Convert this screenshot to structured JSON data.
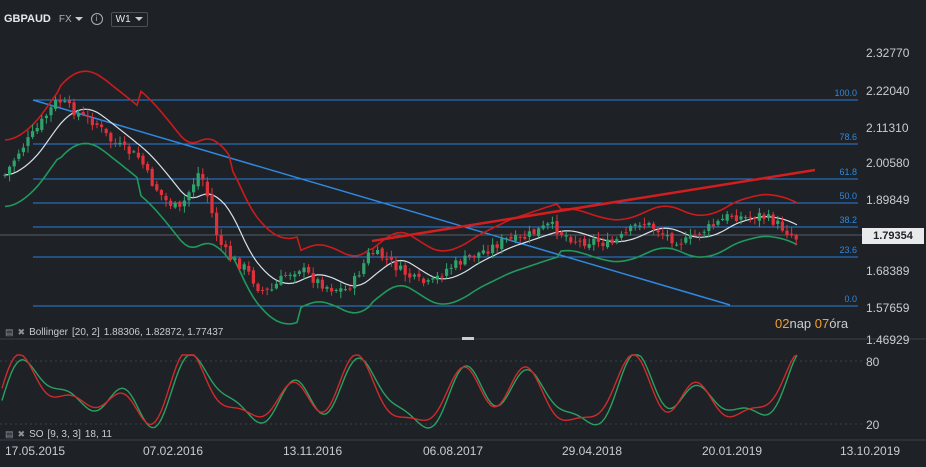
{
  "header": {
    "symbol": "GBPAUD",
    "market": "FX",
    "timeframe": "W1"
  },
  "price_axis": {
    "labels": [
      "2.32770",
      "2.22040",
      "2.11310",
      "2.00580",
      "1.89849",
      "1.79354",
      "1.68389",
      "1.57659",
      "1.46929"
    ],
    "current_price": "1.79354"
  },
  "fib_levels": [
    "100.0",
    "78.6",
    "61.8",
    "50.0",
    "38.2",
    "23.6",
    "0.0"
  ],
  "date_axis": {
    "labels": [
      "17.05.2015",
      "07.02.2016",
      "13.11.2016",
      "06.08.2017",
      "29.04.2018",
      "20.01.2019",
      "13.10.2019"
    ]
  },
  "bollinger": {
    "label": "Bollinger",
    "params": "[20, 2]",
    "values": "1.88306,  1.82872,  1.77437"
  },
  "stochastic": {
    "label": "SO",
    "params": "[9, 3, 3]",
    "values": "18, 11",
    "levels": [
      "80",
      "20"
    ]
  },
  "countdown": {
    "days": "02",
    "days_unit": "nap",
    "hours": "07",
    "hours_unit": "óra"
  },
  "colors": {
    "background": "#1e2227",
    "bull_candle": "#2fa36b",
    "bear_candle": "#e0303a",
    "fib_line": "#2b7fd8",
    "trend_line": "#2f88e0",
    "red_trend": "#d21e1e",
    "bb_upper": "#cc1b1b",
    "bb_middle": "#d8e2ea",
    "bb_lower": "#1f9a5c",
    "so_k": "#d02a2a",
    "so_d": "#2aa060",
    "countdown_accent": "#f0a030"
  },
  "icons": [
    "caret-down-icon",
    "info-icon",
    "indicator-settings-icon",
    "indicator-close-icon"
  ]
}
